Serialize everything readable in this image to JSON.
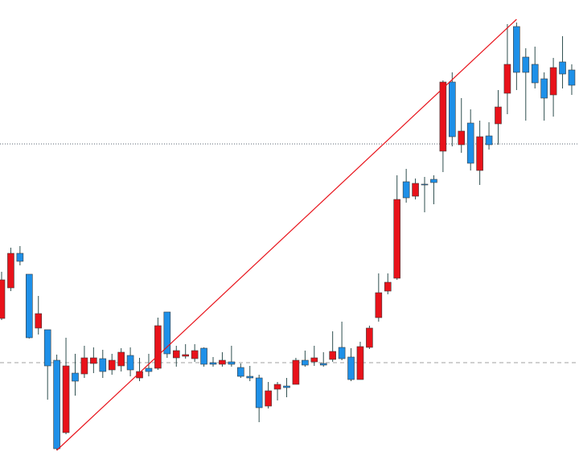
{
  "chart_data": {
    "type": "candlestick",
    "open": [
      186,
      224,
      267,
      241,
      174,
      172,
      134,
      44,
      118,
      117,
      130,
      136,
      122,
      127,
      140,
      112,
      124,
      124,
      194,
      137,
      139,
      136,
      149,
      131,
      129,
      132,
      125,
      114,
      112,
      77,
      98,
      102,
      104,
      134,
      132,
      130,
      135,
      150,
      138,
      110,
      150,
      187,
      220,
      236,
      356,
      338,
      353,
      359,
      394,
      480,
      402,
      429,
      370,
      413,
      428,
      466,
      549,
      511,
      502,
      484,
      464,
      505,
      495
    ],
    "high": [
      244,
      274,
      276,
      241,
      214,
      172,
      141,
      162,
      142,
      152,
      150,
      147,
      142,
      149,
      150,
      137,
      142,
      187,
      194,
      152,
      154,
      154,
      150,
      138,
      144,
      152,
      130,
      127,
      116,
      107,
      107,
      112,
      137,
      146,
      152,
      144,
      170,
      182,
      149,
      157,
      177,
      242,
      242,
      364,
      372,
      360,
      362,
      364,
      482,
      492,
      460,
      446,
      432,
      430,
      470,
      552,
      554,
      522,
      524,
      492,
      510,
      537,
      502
    ],
    "low": [
      184,
      220,
      252,
      161,
      166,
      85,
      22,
      42,
      90,
      112,
      118,
      112,
      116,
      120,
      114,
      108,
      114,
      122,
      137,
      126,
      136,
      132,
      126,
      126,
      126,
      126,
      112,
      108,
      57,
      74,
      84,
      88,
      104,
      126,
      127,
      126,
      132,
      134,
      108,
      110,
      148,
      182,
      216,
      234,
      330,
      334,
      318,
      328,
      368,
      400,
      392,
      370,
      352,
      396,
      402,
      440,
      470,
      432,
      472,
      432,
      437,
      472,
      464
    ],
    "close": [
      234,
      267,
      257,
      162,
      192,
      127,
      24,
      127,
      108,
      137,
      137,
      120,
      134,
      144,
      122,
      120,
      120,
      177,
      142,
      146,
      141,
      146,
      129,
      129,
      134,
      129,
      114,
      112,
      75,
      96,
      104,
      100,
      134,
      128,
      137,
      128,
      145,
      136,
      110,
      151,
      174,
      218,
      231,
      334,
      336,
      354,
      352,
      355,
      480,
      412,
      419,
      379,
      412,
      402,
      449,
      502,
      492,
      492,
      479,
      460,
      498,
      490,
      476
    ],
    "up_color": "#e8121a",
    "down_color": "#1e90e8",
    "wick_color": "#2f4f4f",
    "ylim": [
      0,
      582
    ],
    "hlines": [
      {
        "value": 403,
        "style": "dotted",
        "color": "#5a6470"
      },
      {
        "value": 131,
        "style": "dashed",
        "color": "#a0a0a0"
      }
    ],
    "trendline": {
      "from": [
        6,
        22
      ],
      "to": [
        56,
        558
      ],
      "color": "#e8121a"
    }
  }
}
